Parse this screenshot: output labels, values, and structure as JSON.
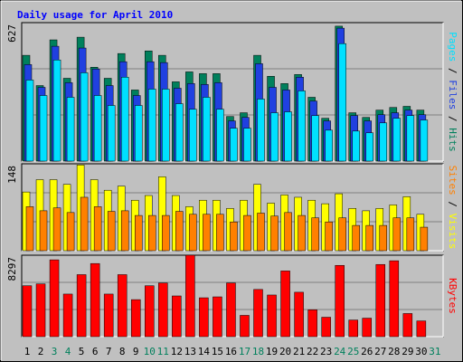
{
  "chart_data": {
    "type": "bar",
    "title": "Daily usage for April 2010",
    "categories": [
      "1",
      "2",
      "3",
      "4",
      "5",
      "6",
      "7",
      "8",
      "9",
      "10",
      "11",
      "12",
      "13",
      "14",
      "15",
      "16",
      "17",
      "18",
      "19",
      "20",
      "21",
      "22",
      "23",
      "24",
      "25",
      "26",
      "27",
      "28",
      "29",
      "30",
      "31"
    ],
    "category_colors": [
      "#000000",
      "#000000",
      "#00805c",
      "#00805c",
      "#000000",
      "#000000",
      "#000000",
      "#000000",
      "#000000",
      "#00805c",
      "#00805c",
      "#000000",
      "#000000",
      "#000000",
      "#000000",
      "#000000",
      "#00805c",
      "#00805c",
      "#000000",
      "#000000",
      "#000000",
      "#000000",
      "#000000",
      "#00805c",
      "#00805c",
      "#000000",
      "#000000",
      "#000000",
      "#000000",
      "#000000",
      "#00805c"
    ],
    "panels": [
      {
        "ylim": [
          0,
          627
        ],
        "yticks": [
          627
        ],
        "series": [
          {
            "name": "Hits",
            "color": "#00805c",
            "values": [
              479,
              342,
              549,
              375,
              561,
              425,
              375,
              487,
              322,
              499,
              479,
              359,
              404,
              396,
              396,
              202,
              219,
              479,
              384,
              351,
              392,
              289,
              194,
              611,
              219,
              198,
              231,
              243,
              248,
              231,
              null
            ]
          },
          {
            "name": "Files",
            "color": "#2040e0",
            "values": [
              437,
              334,
              520,
              355,
              512,
              417,
              342,
              450,
              297,
              450,
              446,
              330,
              351,
              347,
              355,
              182,
              198,
              441,
              334,
              322,
              380,
              272,
              182,
              602,
              206,
              182,
              210,
              219,
              231,
              210,
              null
            ]
          },
          {
            "name": "Pages",
            "color": "#00e0ff",
            "values": [
              367,
              297,
              458,
              289,
              400,
              297,
              252,
              380,
              252,
              326,
              326,
              260,
              235,
              289,
              235,
              149,
              149,
              281,
              219,
              223,
              318,
              206,
              140,
              532,
              136,
              128,
              173,
              194,
              206,
              186,
              null
            ]
          }
        ]
      },
      {
        "ylim": [
          0,
          148
        ],
        "yticks": [
          148
        ],
        "series": [
          {
            "name": "Visits",
            "color": "#ffff00",
            "values": [
              100,
              121,
              121,
              113,
              146,
              121,
              103,
              110,
              86,
              94,
              126,
              94,
              75,
              86,
              86,
              72,
              86,
              113,
              81,
              95,
              91,
              86,
              80,
              97,
              72,
              68,
              72,
              78,
              92,
              62,
              null
            ]
          },
          {
            "name": "Sites",
            "color": "#ff8000",
            "values": [
              75,
              68,
              73,
              65,
              91,
              75,
              67,
              68,
              60,
              60,
              60,
              67,
              62,
              62,
              62,
              49,
              60,
              64,
              59,
              65,
              60,
              56,
              49,
              56,
              43,
              43,
              43,
              56,
              56,
              40,
              null
            ]
          }
        ]
      },
      {
        "ylim": [
          0,
          8297
        ],
        "yticks": [
          8297
        ],
        "series": [
          {
            "name": "KBytes",
            "color": "#ff0000",
            "values": [
              5187,
              5375,
              7827,
              4338,
              6318,
              7450,
              4338,
              6318,
              3772,
              5187,
              5469,
              4149,
              8297,
              3961,
              4055,
              5469,
              2169,
              4809,
              4244,
              6695,
              4526,
              2735,
              1980,
              7261,
              1697,
              1886,
              7355,
              7733,
              2357,
              1603,
              null
            ]
          }
        ]
      }
    ]
  }
}
